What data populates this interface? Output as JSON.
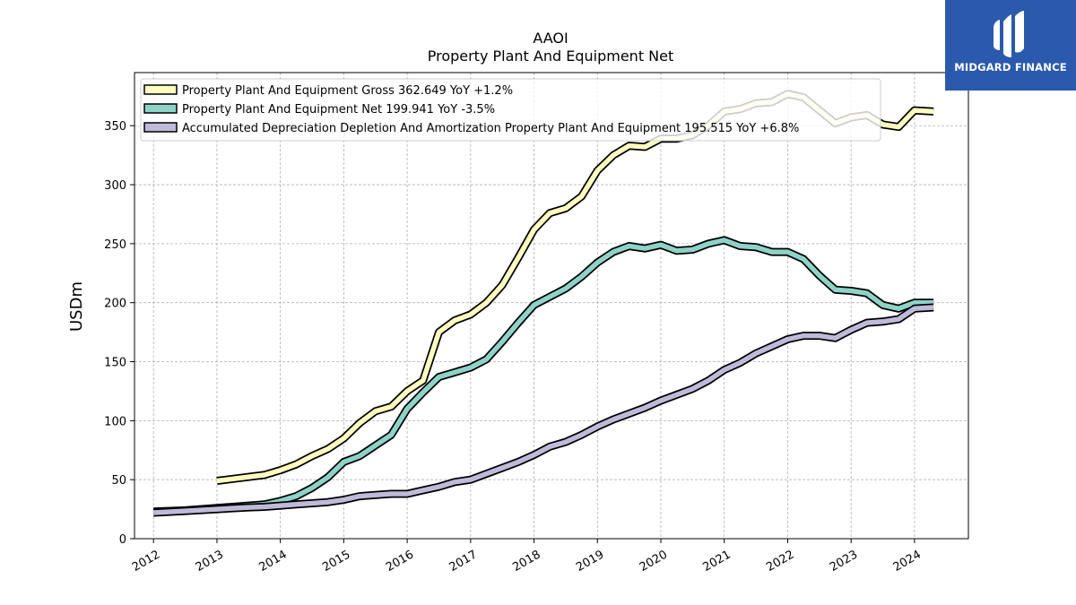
{
  "brand": {
    "name": "MIDGARD FINANCE"
  },
  "chart_data": {
    "type": "line",
    "title": "AAOI",
    "subtitle": "Property Plant And Equipment Net",
    "ylabel": "USDm",
    "xlabel": "",
    "xlim": [
      2011.7,
      2024.85
    ],
    "ylim": [
      0,
      395
    ],
    "x_ticks": [
      "2012",
      "2013",
      "2014",
      "2015",
      "2016",
      "2017",
      "2018",
      "2019",
      "2020",
      "2021",
      "2022",
      "2023",
      "2024"
    ],
    "y_ticks": [
      "0",
      "50",
      "100",
      "150",
      "200",
      "250",
      "300",
      "350"
    ],
    "grid": true,
    "legend_position": "top-left",
    "series": [
      {
        "name": "Property Plant And Equipment Gross",
        "legend": "Property Plant And Equipment Gross  362.649 YoY +1.2%",
        "color": "#ffffc0",
        "x": [
          2013.0,
          2013.75,
          2014.0,
          2014.25,
          2014.5,
          2014.75,
          2015.0,
          2015.25,
          2015.5,
          2015.75,
          2016.0,
          2016.25,
          2016.5,
          2016.75,
          2017.0,
          2017.25,
          2017.5,
          2017.75,
          2018.0,
          2018.25,
          2018.5,
          2018.75,
          2019.0,
          2019.25,
          2019.5,
          2019.75,
          2020.0,
          2020.25,
          2020.5,
          2020.75,
          2021.0,
          2021.25,
          2021.5,
          2021.75,
          2022.0,
          2022.25,
          2022.5,
          2022.75,
          2023.0,
          2023.25,
          2023.5,
          2023.75,
          2024.0,
          2024.3
        ],
        "y": [
          49,
          54,
          58,
          63,
          70,
          76,
          85,
          98,
          108,
          112,
          125,
          134,
          175,
          185,
          190,
          200,
          215,
          238,
          262,
          276,
          280,
          290,
          312,
          325,
          333,
          332,
          339,
          339,
          342,
          350,
          362,
          364,
          369,
          370,
          377,
          374,
          363,
          352,
          357,
          359,
          351,
          349,
          363,
          362
        ]
      },
      {
        "name": "Property Plant And Equipment Net",
        "legend": "Property Plant And Equipment Net  199.941 YoY -3.5%",
        "color": "#8dd3c7",
        "x": [
          2012.0,
          2012.5,
          2013.0,
          2013.5,
          2013.75,
          2014.0,
          2014.25,
          2014.5,
          2014.75,
          2015.0,
          2015.25,
          2015.5,
          2015.75,
          2016.0,
          2016.25,
          2016.5,
          2016.75,
          2017.0,
          2017.25,
          2017.5,
          2017.75,
          2018.0,
          2018.25,
          2018.5,
          2018.75,
          2019.0,
          2019.25,
          2019.5,
          2019.75,
          2020.0,
          2020.25,
          2020.5,
          2020.75,
          2021.0,
          2021.25,
          2021.5,
          2021.75,
          2022.0,
          2022.25,
          2022.5,
          2022.75,
          2023.0,
          2023.25,
          2023.5,
          2023.75,
          2024.0,
          2024.3
        ],
        "y": [
          23,
          24,
          26,
          28,
          29,
          32,
          36,
          43,
          52,
          65,
          70,
          79,
          88,
          110,
          124,
          137,
          141,
          145,
          152,
          167,
          183,
          198,
          205,
          212,
          222,
          234,
          243,
          248,
          246,
          249,
          244,
          245,
          250,
          253,
          248,
          247,
          243,
          243,
          237,
          223,
          211,
          210,
          208,
          198,
          195,
          200,
          200
        ]
      },
      {
        "name": "Accumulated Depreciation Depletion And Amortization Property Plant And Equipment",
        "legend": "Accumulated Depreciation Depletion And Amortization Property Plant And Equipment  195.515 YoY +6.8%",
        "color": "#bebada",
        "x": [
          2012.0,
          2012.5,
          2013.0,
          2013.5,
          2013.75,
          2014.0,
          2014.25,
          2014.5,
          2014.75,
          2015.0,
          2015.25,
          2015.5,
          2015.75,
          2016.0,
          2016.25,
          2016.5,
          2016.75,
          2017.0,
          2017.25,
          2017.5,
          2017.75,
          2018.0,
          2018.25,
          2018.5,
          2018.75,
          2019.0,
          2019.25,
          2019.5,
          2019.75,
          2020.0,
          2020.25,
          2020.5,
          2020.75,
          2021.0,
          2021.25,
          2021.5,
          2021.75,
          2022.0,
          2022.25,
          2022.5,
          2022.75,
          2023.0,
          2023.25,
          2023.5,
          2023.75,
          2024.0,
          2024.3
        ],
        "y": [
          22,
          23.5,
          25,
          26.5,
          27,
          28,
          29,
          30,
          31,
          33,
          36,
          37,
          38,
          38,
          41,
          44,
          48,
          50,
          55,
          60,
          65,
          71,
          78,
          82,
          88,
          95,
          101,
          106,
          111,
          117,
          122,
          127,
          134,
          143,
          149,
          157,
          163,
          169,
          172,
          172,
          170,
          177,
          183,
          184,
          186,
          195,
          196
        ]
      }
    ]
  }
}
